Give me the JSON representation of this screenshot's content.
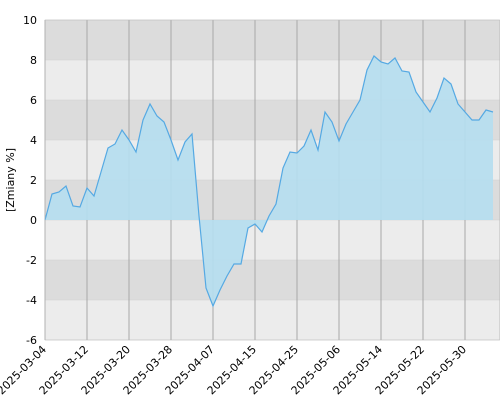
{
  "chart_data": {
    "type": "area",
    "y_label": "[Zmiany %]",
    "x": [
      "2025-03-04",
      "2025-03-05",
      "2025-03-06",
      "2025-03-07",
      "2025-03-10",
      "2025-03-11",
      "2025-03-12",
      "2025-03-13",
      "2025-03-14",
      "2025-03-17",
      "2025-03-18",
      "2025-03-19",
      "2025-03-20",
      "2025-03-21",
      "2025-03-24",
      "2025-03-25",
      "2025-03-26",
      "2025-03-27",
      "2025-03-28",
      "2025-03-31",
      "2025-04-01",
      "2025-04-02",
      "2025-04-03",
      "2025-04-04",
      "2025-04-07",
      "2025-04-08",
      "2025-04-09",
      "2025-04-10",
      "2025-04-11",
      "2025-04-14",
      "2025-04-15",
      "2025-04-16",
      "2025-04-17",
      "2025-04-22",
      "2025-04-23",
      "2025-04-24",
      "2025-04-25",
      "2025-04-28",
      "2025-04-29",
      "2025-04-30",
      "2025-05-02",
      "2025-05-05",
      "2025-05-06",
      "2025-05-07",
      "2025-05-08",
      "2025-05-09",
      "2025-05-12",
      "2025-05-13",
      "2025-05-14",
      "2025-05-15",
      "2025-05-16",
      "2025-05-19",
      "2025-05-20",
      "2025-05-21",
      "2025-05-22",
      "2025-05-23",
      "2025-05-26",
      "2025-05-27",
      "2025-05-28",
      "2025-05-29",
      "2025-05-30",
      "2025-06-02",
      "2025-06-03",
      "2025-06-04",
      "2025-06-05"
    ],
    "values": [
      0,
      1.3,
      1.4,
      1.7,
      0.7,
      0.65,
      1.6,
      1.2,
      2.4,
      3.6,
      3.8,
      4.5,
      4.0,
      3.4,
      5.0,
      5.8,
      5.2,
      4.9,
      4.0,
      3.0,
      3.9,
      4.3,
      0.2,
      -3.4,
      -4.3,
      -3.5,
      -2.8,
      -2.2,
      -2.2,
      -0.4,
      -0.2,
      -0.6,
      0.2,
      0.8,
      2.6,
      3.4,
      3.35,
      3.7,
      4.5,
      3.5,
      5.4,
      4.9,
      3.95,
      4.8,
      5.4,
      6.0,
      7.5,
      8.2,
      7.9,
      7.8,
      8.1,
      7.45,
      7.4,
      6.4,
      5.9,
      5.4,
      6.1,
      7.1,
      6.8,
      5.8,
      5.4,
      5.0,
      5.0,
      5.5,
      5.4
    ],
    "xticks": [
      "2025-03-04",
      "2025-03-12",
      "2025-03-20",
      "2025-03-28",
      "2025-04-07",
      "2025-04-15",
      "2025-04-25",
      "2025-05-06",
      "2025-05-14",
      "2025-05-22",
      "2025-05-30"
    ],
    "ylim": [
      -6,
      10
    ],
    "yticks": [
      -6,
      -4,
      -2,
      0,
      2,
      4,
      6,
      8,
      10
    ],
    "color": "#55a9e3",
    "fill": "#b5def0",
    "grid": true
  }
}
